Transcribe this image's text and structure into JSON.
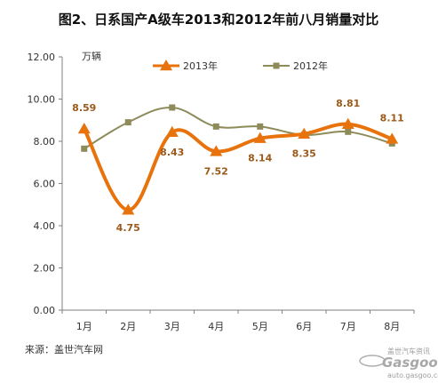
{
  "chart_data": {
    "type": "line",
    "title": "图2、日系国产A级车2013和2012年前八月销量对比",
    "unit_label": "万辆",
    "categories": [
      "1月",
      "2月",
      "3月",
      "4月",
      "5月",
      "6月",
      "7月",
      "8月"
    ],
    "yticks": [
      "0.00",
      "2.00",
      "4.00",
      "6.00",
      "8.00",
      "10.00",
      "12.00"
    ],
    "ylim": [
      0,
      12
    ],
    "grid": false,
    "legend_position": "top",
    "series": [
      {
        "name": "2013年",
        "color": "#e8730c",
        "marker": "triangle",
        "values": [
          8.59,
          4.75,
          8.43,
          7.52,
          8.14,
          8.35,
          8.81,
          8.11
        ],
        "labels": [
          "8.59",
          "4.75",
          "8.43",
          "7.52",
          "8.14",
          "8.35",
          "8.81",
          "8.11"
        ]
      },
      {
        "name": "2012年",
        "color": "#8d8b5a",
        "marker": "square",
        "values": [
          7.65,
          8.9,
          9.6,
          8.7,
          8.7,
          8.3,
          8.45,
          7.9
        ]
      }
    ],
    "source": "来源：盖世汽车网"
  },
  "watermark": {
    "logo": "Gasgoo",
    "sub": "盖世汽车资讯",
    "url": "auto.gasgoo.com"
  }
}
